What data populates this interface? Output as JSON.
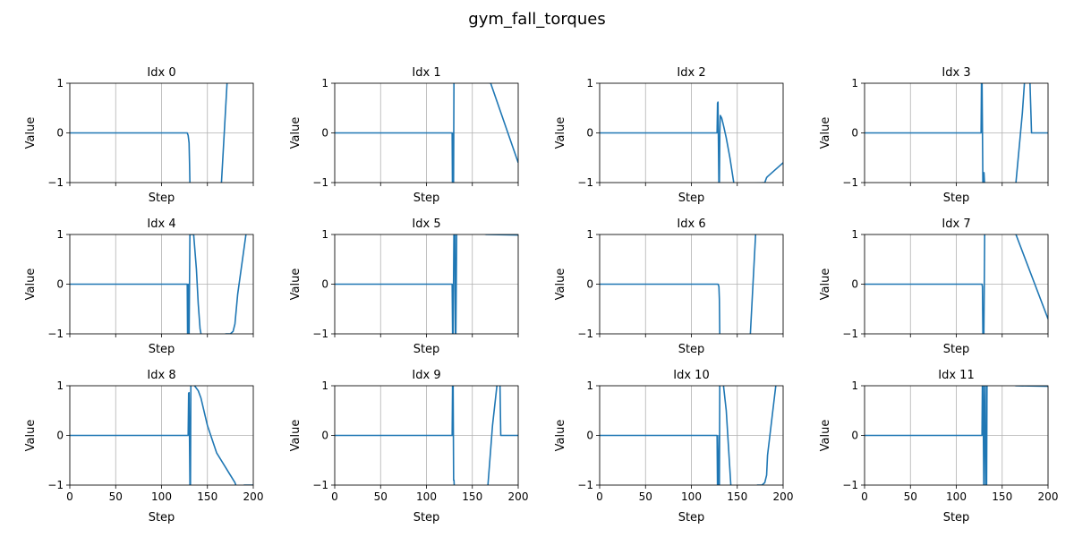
{
  "chart_data": {
    "type": "line",
    "suptitle": "gym_fall_torques",
    "xlabel": "Step",
    "ylabel": "Value",
    "xlim": [
      0,
      200
    ],
    "ylim": [
      -1,
      1
    ],
    "xticks": [
      0,
      50,
      100,
      150,
      200
    ],
    "yticks": [
      -1,
      0,
      1
    ],
    "grid": true,
    "line_color": "#1f77b4",
    "subplots": [
      {
        "title": "Idx 0",
        "x": [
          0,
          128,
          129,
          130,
          130.5,
          131,
          165,
          172,
          200
        ],
        "y": [
          0,
          0,
          -0.05,
          -0.2,
          -0.6,
          -1.1,
          -1.1,
          1.2,
          1.2
        ]
      },
      {
        "title": "Idx 1",
        "x": [
          0,
          128,
          128.3,
          128.6,
          129,
          129.5,
          130,
          130.5,
          131,
          170,
          200
        ],
        "y": [
          0,
          0,
          -1.1,
          -1.1,
          0,
          -1.1,
          1.2,
          1.2,
          1.2,
          1.0,
          -0.6
        ]
      },
      {
        "title": "Idx 2",
        "x": [
          0,
          128,
          128.5,
          129,
          130,
          130.5,
          131,
          131.5,
          133,
          135,
          138,
          142,
          147,
          148,
          165,
          180,
          182,
          183,
          200
        ],
        "y": [
          0,
          0,
          0.6,
          0.62,
          -1.1,
          -1.1,
          0.0,
          0.35,
          0.3,
          0.15,
          -0.1,
          -0.5,
          -1.1,
          -1.1,
          -1.02,
          -1.0,
          -0.9,
          -0.88,
          -0.6
        ]
      },
      {
        "title": "Idx 3",
        "x": [
          0,
          127,
          127.5,
          128,
          129,
          129.4,
          129.8,
          130.2,
          131,
          132,
          162,
          165,
          172,
          175,
          176,
          177,
          180,
          182,
          183,
          200
        ],
        "y": [
          0,
          0,
          1.2,
          1.2,
          -1.1,
          -1.1,
          -0.8,
          -0.8,
          -1.1,
          -1.1,
          -1.1,
          -1.0,
          0.4,
          1.2,
          1.2,
          1.2,
          1.2,
          0.0,
          0.0,
          0.0
        ]
      },
      {
        "title": "Idx 4",
        "x": [
          0,
          128,
          128.4,
          128.8,
          129,
          130,
          131,
          132,
          135,
          138,
          140,
          142,
          144,
          163,
          170,
          175,
          178,
          180,
          182,
          183,
          192,
          200
        ],
        "y": [
          0,
          0,
          -1.1,
          -1.1,
          0,
          -1.1,
          1.2,
          1.0,
          1.0,
          0.3,
          -0.4,
          -0.9,
          -1.1,
          -1.1,
          -1.0,
          -1.0,
          -0.95,
          -0.8,
          -0.4,
          -0.2,
          1.0,
          1.2
        ]
      },
      {
        "title": "Idx 5",
        "x": [
          0,
          128,
          128.5,
          129,
          129.5,
          130,
          131,
          131.5,
          132,
          133,
          134,
          165,
          200
        ],
        "y": [
          0,
          0,
          -1.1,
          -1.1,
          0,
          1.2,
          1.2,
          -1.1,
          -1.1,
          1.2,
          1.2,
          1.0,
          0.99
        ]
      },
      {
        "title": "Idx 6",
        "x": [
          0,
          128,
          129,
          129.5,
          130,
          130.5,
          131,
          164,
          170,
          172,
          200
        ],
        "y": [
          0,
          0,
          0,
          -0.02,
          -0.05,
          -0.3,
          -1.1,
          -1.1,
          1.0,
          1.2,
          1.2
        ]
      },
      {
        "title": "Idx 7",
        "x": [
          0,
          128,
          128.5,
          129,
          130,
          130.5,
          131,
          132,
          165,
          200
        ],
        "y": [
          0,
          0,
          -0.05,
          -1.1,
          -1.1,
          0,
          1.2,
          1.2,
          1.0,
          -0.7
        ]
      },
      {
        "title": "Idx 8",
        "x": [
          0,
          128,
          129,
          129.5,
          130,
          131,
          131.5,
          132,
          133,
          136,
          140,
          143,
          150,
          160,
          170,
          180,
          181,
          182,
          183,
          185,
          190,
          200
        ],
        "y": [
          0,
          0,
          0,
          0.85,
          0.86,
          -1.1,
          -1.1,
          1.2,
          1.05,
          1.0,
          0.9,
          0.75,
          0.2,
          -0.35,
          -0.65,
          -0.95,
          -1.0,
          -1.05,
          -1.1,
          -1.1,
          -1.0,
          -1.0
        ]
      },
      {
        "title": "Idx 9",
        "x": [
          0,
          128,
          128.5,
          129,
          129.6,
          130,
          130.5,
          131,
          131.5,
          132,
          164,
          167,
          172,
          178,
          178.5,
          179,
          180,
          181,
          182,
          183,
          200
        ],
        "y": [
          0,
          0,
          1.2,
          1.2,
          -0.9,
          -0.9,
          -1.1,
          -1.1,
          -1.1,
          -1.1,
          -1.1,
          -1.0,
          0.2,
          1.2,
          1.2,
          1.2,
          1.2,
          0.0,
          0.0,
          0.0,
          0.0
        ]
      },
      {
        "title": "Idx 10",
        "x": [
          0,
          128,
          128.5,
          129,
          130,
          130.5,
          131,
          131.5,
          133,
          135,
          138,
          141,
          143,
          144,
          165,
          172,
          177,
          180,
          182,
          183,
          192,
          200
        ],
        "y": [
          0,
          0,
          -1.1,
          -1.1,
          0,
          -1.1,
          1.2,
          1.2,
          1.05,
          1.0,
          0.5,
          -0.4,
          -1.0,
          -1.1,
          -1.1,
          -1.0,
          -1.0,
          -0.95,
          -0.8,
          -0.4,
          1.0,
          1.2
        ]
      },
      {
        "title": "Idx 11",
        "x": [
          0,
          128,
          128.5,
          129,
          130,
          131,
          131.5,
          132,
          133,
          133.5,
          165,
          200
        ],
        "y": [
          0,
          0,
          1.2,
          1.2,
          -1.1,
          1.2,
          1.2,
          -1.1,
          -1.1,
          1.2,
          1.0,
          0.99
        ]
      }
    ]
  }
}
